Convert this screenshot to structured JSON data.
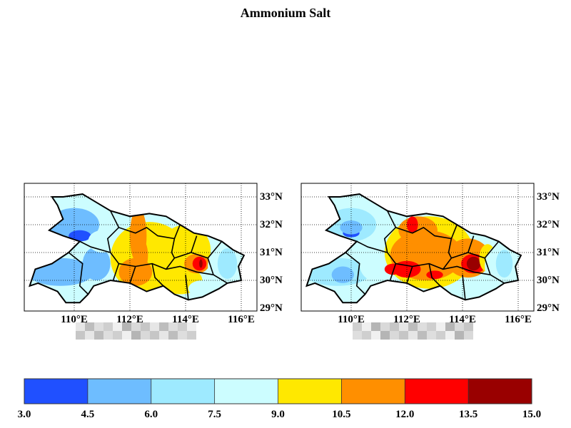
{
  "title": "Ammonium Salt",
  "maps": [
    {
      "id": "left",
      "lat_labels": [
        "33°N",
        "32°N",
        "31°N",
        "30°N",
        "29°N"
      ],
      "lon_labels": [
        "110°E",
        "112°E",
        "114°E",
        "116°E"
      ],
      "caption_obscured": true,
      "hotspot_level": "high"
    },
    {
      "id": "right",
      "lat_labels": [
        "33°N",
        "32°N",
        "31°N",
        "30°N",
        "29°N"
      ],
      "lon_labels": [
        "110°E",
        "112°E",
        "114°E",
        "116°E"
      ],
      "caption_obscured": true,
      "hotspot_level": "very-high"
    }
  ],
  "lat_values": [
    33,
    32,
    31,
    30,
    29
  ],
  "lon_values": [
    110,
    112,
    114,
    116
  ],
  "colorbar": {
    "ticks": [
      "3.0",
      "4.5",
      "6.0",
      "7.5",
      "9.0",
      "10.5",
      "12.0",
      "13.5",
      "15.0"
    ],
    "colors": [
      "#2050ff",
      "#6ebdff",
      "#9eeaff",
      "#ccfdff",
      "#ffe800",
      "#ff8f00",
      "#ff0000",
      "#990000"
    ]
  }
}
